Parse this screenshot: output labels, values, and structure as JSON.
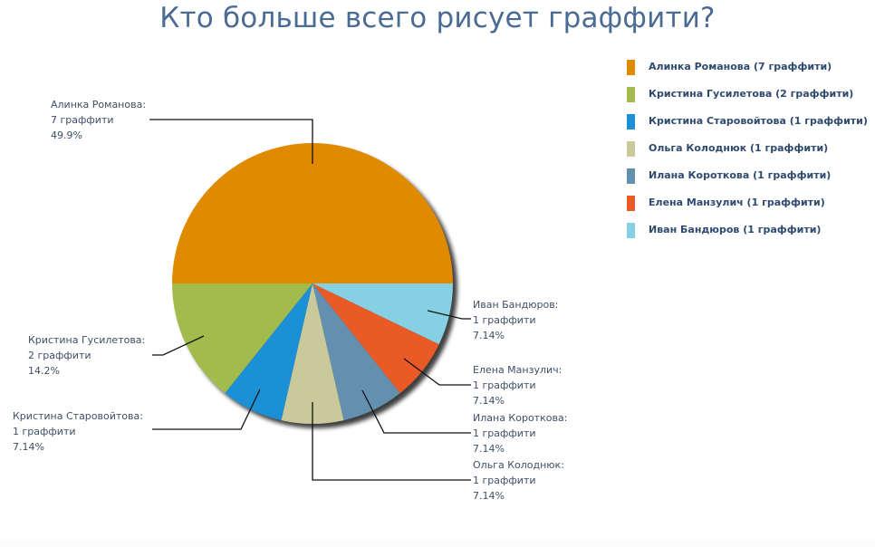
{
  "chart_data": {
    "type": "pie",
    "title": "Кто больше всего рисует граффити?",
    "unit": "граффити",
    "legend_position": "right",
    "slices": [
      {
        "name": "Алинка Романова",
        "value": 7,
        "percent": "49.9%",
        "color": "#e08a00"
      },
      {
        "name": "Кристина Гусилетова",
        "value": 2,
        "percent": "14.2%",
        "color": "#a2bb4d"
      },
      {
        "name": "Кристина Старовойтова",
        "value": 1,
        "percent": "7.14%",
        "color": "#1c90d6"
      },
      {
        "name": "Ольга Колоднюк",
        "value": 1,
        "percent": "7.14%",
        "color": "#c9c99b"
      },
      {
        "name": "Илана Короткова",
        "value": 1,
        "percent": "7.14%",
        "color": "#6490b0"
      },
      {
        "name": "Елена Манзулич",
        "value": 1,
        "percent": "7.14%",
        "color": "#ea5a26"
      },
      {
        "name": "Иван Бандюров",
        "value": 1,
        "percent": "7.14%",
        "color": "#86d0e3"
      }
    ]
  },
  "title": "Кто больше всего рисует граффити?",
  "labels": [
    {
      "name": "Алинка Романова:",
      "count": "7 граффити",
      "pct": "49.9%"
    },
    {
      "name": "Кристина Гусилетова:",
      "count": "2 граффити",
      "pct": "14.2%"
    },
    {
      "name": "Кристина Старовойтова:",
      "count": "1 граффити",
      "pct": "7.14%"
    },
    {
      "name": "Ольга Колоднюк:",
      "count": "1 граффити",
      "pct": "7.14%"
    },
    {
      "name": "Илана Короткова:",
      "count": "1 граффити",
      "pct": "7.14%"
    },
    {
      "name": "Елена Манзулич:",
      "count": "1 граффити",
      "pct": "7.14%"
    },
    {
      "name": "Иван Бандюров:",
      "count": "1 граффити",
      "pct": "7.14%"
    }
  ],
  "legend": [
    {
      "label": "Алинка Романова (7 граффити)",
      "color": "#e08a00"
    },
    {
      "label": "Кристина Гусилетова (2 граффити)",
      "color": "#a2bb4d"
    },
    {
      "label": "Кристина Старовойтова (1 граффити)",
      "color": "#1c90d6"
    },
    {
      "label": "Ольга Колоднюк (1 граффити)",
      "color": "#c9c99b"
    },
    {
      "label": "Илана Короткова (1 граффити)",
      "color": "#6490b0"
    },
    {
      "label": "Елена Манзулич (1 граффити)",
      "color": "#ea5a26"
    },
    {
      "label": "Иван Бандюров (1 граффити)",
      "color": "#86d0e3"
    }
  ]
}
